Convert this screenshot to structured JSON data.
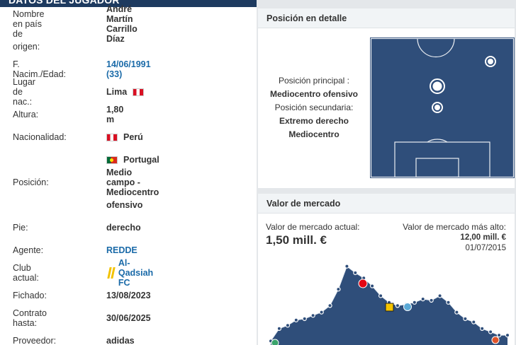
{
  "player_data": {
    "section_title": "DATOS DEL JUGADOR",
    "rows": [
      {
        "label": "Nombre en país de",
        "value": "André Martín Carrillo Díaz"
      },
      {
        "label": "origen:",
        "value": ""
      },
      {
        "label": "F. Nacim./Edad:",
        "value": "14/06/1991 (33)"
      },
      {
        "label": "Lugar de nac.:",
        "value": "Lima"
      },
      {
        "label": "Altura:",
        "value": "1,80 m"
      },
      {
        "label": "Nacionalidad:",
        "value": "Perú"
      },
      {
        "label": "",
        "value": "Portugal"
      },
      {
        "label": "Posición:",
        "value": "Medio campo - Mediocentro"
      },
      {
        "label": "",
        "value": "ofensivo"
      },
      {
        "label": "Pie:",
        "value": "derecho"
      },
      {
        "label": "Agente:",
        "value": "REDDE"
      },
      {
        "label": "Club actual:",
        "value": "Al-Qadsiah FC"
      },
      {
        "label": "Fichado:",
        "value": "13/08/2023"
      },
      {
        "label": "Contrato hasta:",
        "value": "30/06/2025"
      },
      {
        "label": "Proveedor:",
        "value": "adidas"
      }
    ]
  },
  "position_detail": {
    "title": "Posición en detalle",
    "main_label": "Posición principal :",
    "main_value": "Mediocentro ofensivo",
    "secondary_label": "Posición secundaria:",
    "secondary_values": [
      "Extremo derecho",
      "Mediocentro"
    ],
    "pitch_color": "#2f4e7a"
  },
  "market_value": {
    "title": "Valor de mercado",
    "current_label": "Valor de mercado actual:",
    "current_value": "1,50 mill. €",
    "highest_label": "Valor de mercado más alto:",
    "highest_value": "12,00 mill. €",
    "highest_date": "01/07/2015"
  },
  "chart_data": {
    "type": "area",
    "values": [
      0.6,
      2.5,
      3.0,
      3.8,
      4.0,
      4.5,
      5.0,
      6.0,
      8.5,
      12.0,
      11.0,
      10.2,
      9.0,
      7.5,
      6.5,
      6.0,
      6.2,
      6.5,
      7.0,
      6.8,
      7.5,
      6.5,
      5.0,
      4.0,
      3.5,
      2.5,
      2.0,
      1.5,
      1.5
    ],
    "ylim": [
      0,
      12.5
    ],
    "fill_color": "#2f4e7a"
  }
}
